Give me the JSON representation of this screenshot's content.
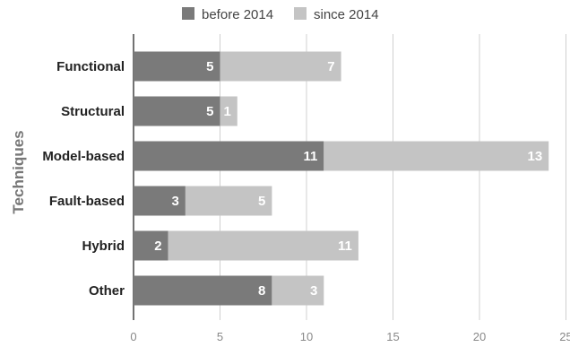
{
  "chart_data": {
    "type": "bar",
    "orientation": "horizontal",
    "stacked": true,
    "ylabel": "Techniques",
    "xlabel": "",
    "categories": [
      "Functional",
      "Structural",
      "Model-based",
      "Fault-based",
      "Hybrid",
      "Other"
    ],
    "series": [
      {
        "name": "before 2014",
        "values": [
          5,
          5,
          11,
          3,
          2,
          8
        ],
        "color": "#7a7a7a"
      },
      {
        "name": "since 2014",
        "values": [
          7,
          1,
          13,
          5,
          11,
          3
        ],
        "color": "#c4c4c4"
      }
    ],
    "xlim": [
      0,
      25
    ],
    "xticks": [
      "0",
      "5",
      "10",
      "15",
      "20",
      "25"
    ],
    "grid": true,
    "legend_position": "top"
  }
}
